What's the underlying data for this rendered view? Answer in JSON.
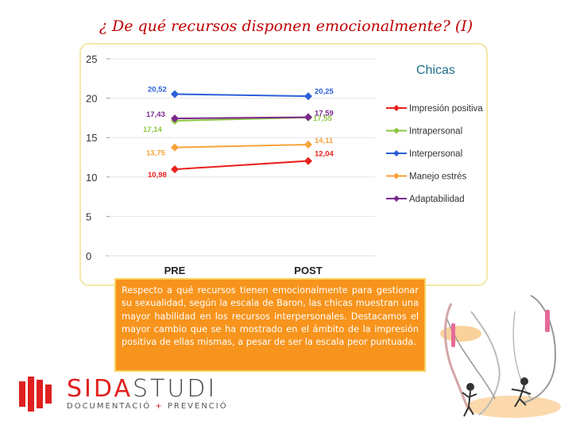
{
  "page": {
    "title": "¿ De qué recursos disponen emocionalmente? (I)",
    "description": "Respecto a qué recursos tienen emocionalmente para gestionar su sexualidad, según la escala de Baron, las chicas muestran una mayor habilidad en los recursos interpersonales. Destacamos el mayor cambio que se ha mostrado en el ámbito de la impresión positiva de ellas mismas, a pesar de ser la escala peor puntuada."
  },
  "logo": {
    "name_red": "SIDA",
    "name_grey": "STUDI",
    "sub_a": "DOCUMENTACIÓ",
    "sub_plus": " + ",
    "sub_b": "PREVENCIÓ"
  },
  "chart_data": {
    "type": "line",
    "title": "Chicas",
    "categories": [
      "PRE",
      "POST"
    ],
    "ylim": [
      0,
      25
    ],
    "yticks": [
      0,
      5,
      10,
      15,
      20,
      25
    ],
    "grid": true,
    "legend_position": "right",
    "series": [
      {
        "name": "Impresión positiva",
        "values": [
          10.98,
          12.04
        ],
        "labels": [
          "10,98",
          "12,04"
        ],
        "color": "#e8211d"
      },
      {
        "name": "Intrapersonal",
        "values": [
          17.14,
          17.55
        ],
        "labels": [
          "17,14",
          "17,55"
        ],
        "color": "#8dc63f"
      },
      {
        "name": "Interpersonal",
        "values": [
          20.52,
          20.25
        ],
        "labels": [
          "20,52",
          "20,25"
        ],
        "color": "#2b5fd9"
      },
      {
        "name": "Manejo estrés",
        "values": [
          13.75,
          14.11
        ],
        "labels": [
          "13,75",
          "14,11"
        ],
        "color": "#f7a23b"
      },
      {
        "name": "Adaptabilidad",
        "values": [
          17.43,
          17.59
        ],
        "labels": [
          "17,43",
          "17,59"
        ],
        "color": "#7a2a8c"
      }
    ]
  }
}
